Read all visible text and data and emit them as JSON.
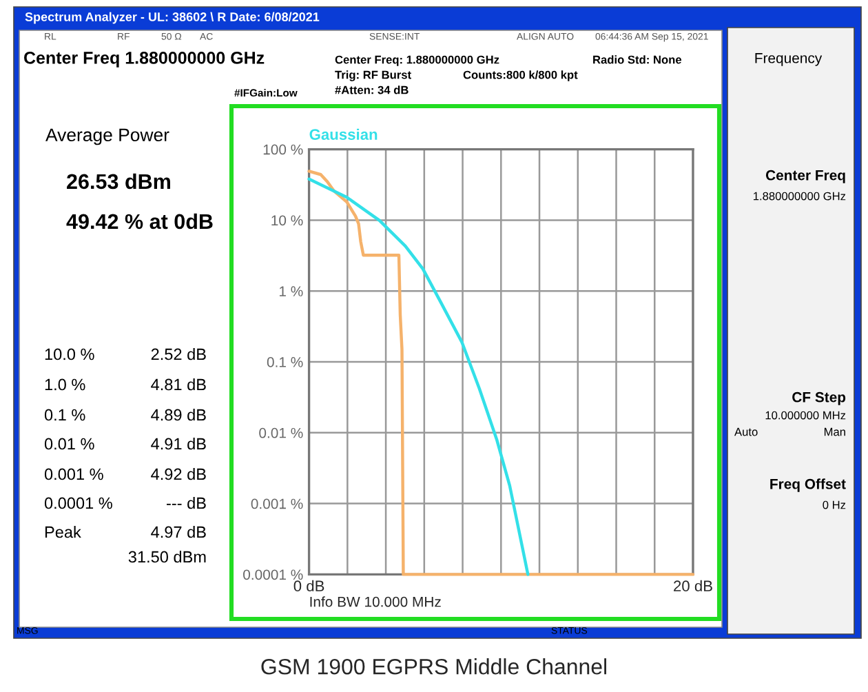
{
  "chart_data": {
    "type": "line",
    "title": "GSM 1900 EGPRS Middle Channel",
    "xlabel": "Info BW 10.000 MHz",
    "log": "y",
    "grid": true,
    "xlim": [
      0,
      20
    ],
    "xticks": [
      {
        "value": 0,
        "label": "0 dB"
      },
      {
        "value": 2,
        "label": null
      },
      {
        "value": 4,
        "label": null
      },
      {
        "value": 6,
        "label": null
      },
      {
        "value": 8,
        "label": null
      },
      {
        "value": 10,
        "label": null
      },
      {
        "value": 12,
        "label": null
      },
      {
        "value": 14,
        "label": null
      },
      {
        "value": 16,
        "label": null
      },
      {
        "value": 18,
        "label": null
      },
      {
        "value": 20,
        "label": "20 dB"
      }
    ],
    "ylim": [
      0.0001,
      100
    ],
    "yticks": [
      {
        "value": 100,
        "label": "100 %"
      },
      {
        "value": 10,
        "label": "10 %"
      },
      {
        "value": 1,
        "label": "1 %"
      },
      {
        "value": 0.1,
        "label": "0.1 %"
      },
      {
        "value": 0.01,
        "label": "0.01 %"
      },
      {
        "value": 0.001,
        "label": "0.001 %"
      },
      {
        "value": 0.0001,
        "label": "0.0001 %"
      }
    ],
    "series": [
      {
        "color": "#f5b26b",
        "x": [
          0,
          0.61,
          0.95,
          1.29,
          1.97,
          2.42,
          2.58,
          2.69,
          2.83,
          4.68,
          4.75,
          4.84,
          4.91,
          20
        ],
        "values": [
          49,
          44,
          35,
          26,
          18,
          11.4,
          8.9,
          5.0,
          3.2,
          3.2,
          0.46,
          0.15,
          0.0001,
          0.0001
        ]
      },
      {
        "name": "Gaussian",
        "color": "#33e0e8",
        "x": [
          0,
          1.97,
          3.67,
          5.02,
          5.93,
          6.83,
          7.96,
          8.87,
          9.77,
          10.45,
          11.4
        ],
        "values": [
          38,
          21,
          9.9,
          4.3,
          2.05,
          0.72,
          0.19,
          0.042,
          0.0081,
          0.0018,
          0.0001
        ]
      }
    ],
    "annotations": [
      "Spectrum Analyzer - UL: 38602 \\ R Date: 6/08/2021",
      "RL",
      "RF",
      "50 Ω",
      "AC",
      "SENSE:INT",
      "ALIGN AUTO",
      "06:44:36 AM Sep 15, 2021",
      "Center Freq 1.880000000 GHz",
      "Center Freq: 1.880000000 GHz",
      "Trig: RF Burst",
      "#Atten: 34 dB",
      "Counts:800 k/800 kpt",
      "Radio Std: None",
      "#IFGain:Low",
      "Frequency",
      "Average Power",
      "26.53 dBm",
      "49.42 % at 0dB",
      "10.0 %",
      "2.52 dB",
      "1.0 %",
      "4.81 dB",
      "0.1 %",
      "4.89 dB",
      "0.01 %",
      "4.91 dB",
      "0.001 %",
      "4.92 dB",
      "0.0001 %",
      "--- dB",
      "Peak",
      "4.97 dB",
      "31.50 dBm",
      "Center Freq",
      "1.880000000 GHz",
      "CF Step",
      "10.000000 MHz",
      "Auto",
      "Man",
      "Freq Offset",
      "0 Hz",
      "MSG",
      "STATUS"
    ]
  }
}
